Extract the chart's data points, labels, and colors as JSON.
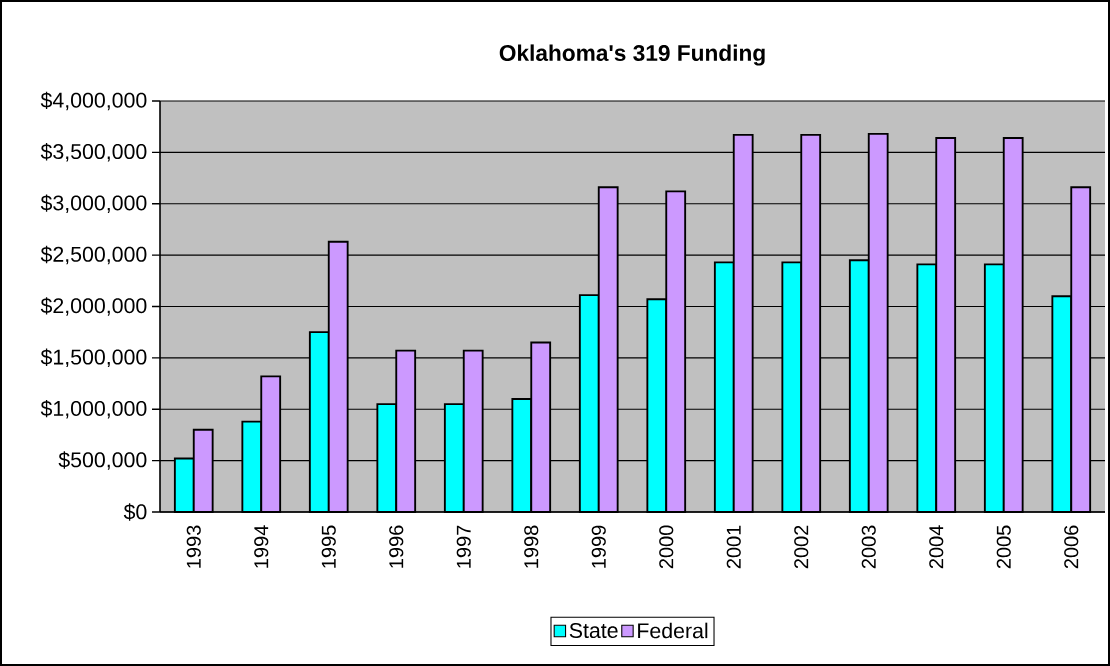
{
  "chart_data": {
    "type": "bar",
    "title": "Oklahoma's 319 Funding",
    "categories": [
      "1993",
      "1994",
      "1995",
      "1996",
      "1997",
      "1998",
      "1999",
      "2000",
      "2001",
      "2002",
      "2003",
      "2004",
      "2005",
      "2006"
    ],
    "series": [
      {
        "name": "State",
        "color": "#00ffff",
        "values": [
          520000,
          880000,
          1750000,
          1050000,
          1050000,
          1100000,
          2110000,
          2070000,
          2430000,
          2430000,
          2450000,
          2410000,
          2410000,
          2100000
        ]
      },
      {
        "name": "Federal",
        "color": "#cc99ff",
        "values": [
          800000,
          1320000,
          2630000,
          1570000,
          1570000,
          1650000,
          3160000,
          3120000,
          3670000,
          3670000,
          3680000,
          3640000,
          3640000,
          3160000
        ]
      }
    ],
    "ylim": [
      0,
      4000000
    ],
    "yticks": [
      {
        "value": 0,
        "label": "$0"
      },
      {
        "value": 500000,
        "label": "$500,000"
      },
      {
        "value": 1000000,
        "label": "$1,000,000"
      },
      {
        "value": 1500000,
        "label": "$1,500,000"
      },
      {
        "value": 2000000,
        "label": "$2,000,000"
      },
      {
        "value": 2500000,
        "label": "$2,500,000"
      },
      {
        "value": 3000000,
        "label": "$3,000,000"
      },
      {
        "value": 3500000,
        "label": "$3,500,000"
      },
      {
        "value": 4000000,
        "label": "$4,000,000"
      }
    ],
    "grid": "y",
    "legend": "bottom"
  }
}
